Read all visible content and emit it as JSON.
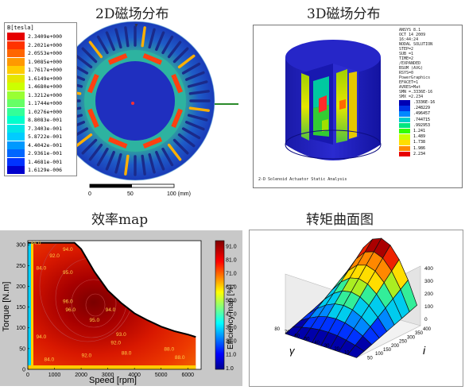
{
  "titles": {
    "tl": "2D磁场分布",
    "tr": "3D磁场分布",
    "bl": "效率map",
    "br": "转矩曲面图"
  },
  "field2d": {
    "legend_title": "B[tesla]",
    "legend_values": [
      "2.3409e+000",
      "2.2021e+000",
      "2.0553e+000",
      "1.9085e+000",
      "1.7617e+000",
      "1.6149e+000",
      "1.4680e+000",
      "1.3212e+000",
      "1.1744e+000",
      "1.0276e+000",
      "8.8083e-001",
      "7.3403e-001",
      "5.8722e-001",
      "4.4042e-001",
      "2.9361e-001",
      "1.4681e-001",
      "1.6129e-006"
    ],
    "legend_colors": [
      "#e60000",
      "#ff3300",
      "#ff6600",
      "#ff9900",
      "#ffcc00",
      "#e6e600",
      "#ccff00",
      "#99ff33",
      "#66ff66",
      "#33ff99",
      "#00ffcc",
      "#00e6e6",
      "#00ccff",
      "#0099ff",
      "#0066ff",
      "#0033ff",
      "#0000cc"
    ],
    "scale": {
      "t0": "0",
      "t1": "50",
      "t2": "100 (mm)"
    }
  },
  "field3d": {
    "info_lines": [
      "ANSYS 8.1",
      "OCT 14 2009",
      "16:44:24",
      "NODAL SOLUTION",
      "STEP=2",
      "SUB =1",
      "TIME=2",
      "/EXPANDED",
      "BSUM     (AVG)",
      "RSYS=0",
      "PowerGraphics",
      "EFACET=1",
      "AVRES=Mat",
      "SMN =.3336E-16",
      "SMX =2.234"
    ],
    "legend_values": [
      ".3336E-16",
      ".248229",
      ".496457",
      ".744715",
      ".992953",
      "1.241",
      "1.489",
      "1.738",
      "1.986",
      "2.234"
    ],
    "legend_colors": [
      "#0000b4",
      "#0033e6",
      "#0088ff",
      "#00cccc",
      "#00e680",
      "#33ff00",
      "#ccff00",
      "#ffdd00",
      "#ff8800",
      "#e60000"
    ],
    "caption": "2-D Solenoid Actuator Static Analysis"
  },
  "efficiency": {
    "ylabel": "Torque [N.m]",
    "xlabel": "Speed [rpm]",
    "cbar_label": "Efficiency map [%]",
    "x_ticks": [
      "0",
      "1000",
      "2000",
      "3000",
      "4000",
      "5000",
      "6000"
    ],
    "y_ticks": [
      "0",
      "50",
      "100",
      "150",
      "200",
      "250",
      "300"
    ],
    "cbar_ticks": [
      "91.0",
      "81.0",
      "71.0",
      "61.0",
      "51.0",
      "41.0",
      "31.0",
      "21.0",
      "11.0",
      "1.0"
    ],
    "contour_labels": [
      "84.0",
      "92.0",
      "94.0",
      "95.0",
      "96.0",
      "96.0",
      "95.0",
      "94.0",
      "93.0",
      "92.0",
      "88.0",
      "84.0",
      "88.0",
      "84.0",
      "94.0",
      "92.0",
      "88.0"
    ]
  },
  "torque_surface": {
    "z_ticks": [
      "400",
      "300",
      "200",
      "100",
      "0"
    ],
    "gamma_ticks": [
      "80",
      "70",
      "60",
      "50",
      "40",
      "30",
      "20",
      "10"
    ],
    "i_ticks": [
      "400",
      "350",
      "300",
      "250",
      "200",
      "150",
      "100",
      "50"
    ],
    "gamma_label": "γ",
    "i_label": "i",
    "colors": [
      "#0000aa",
      "#0033ff",
      "#0088ff",
      "#00ccee",
      "#33ee99",
      "#aaee22",
      "#ffdd00",
      "#ff8800",
      "#ee2200",
      "#aa0000"
    ]
  },
  "chart_data": {
    "type": "heatmap",
    "xlabel": "Speed [rpm]",
    "ylabel": "Torque [N.m]",
    "xlim": [
      0,
      6500
    ],
    "ylim": [
      0,
      310
    ],
    "colorbar": {
      "label": "Efficiency map [%]",
      "range": [
        1.0,
        91.0
      ]
    },
    "max_torque_envelope": {
      "x": [
        0,
        1750,
        2000,
        2500,
        3000,
        3500,
        4000,
        4500,
        5000,
        5500,
        6000,
        6300
      ],
      "y": [
        305,
        305,
        290,
        235,
        190,
        160,
        135,
        118,
        103,
        92,
        84,
        78
      ]
    },
    "contour_labels": [
      84,
      88,
      92,
      93,
      94,
      95,
      96
    ]
  }
}
